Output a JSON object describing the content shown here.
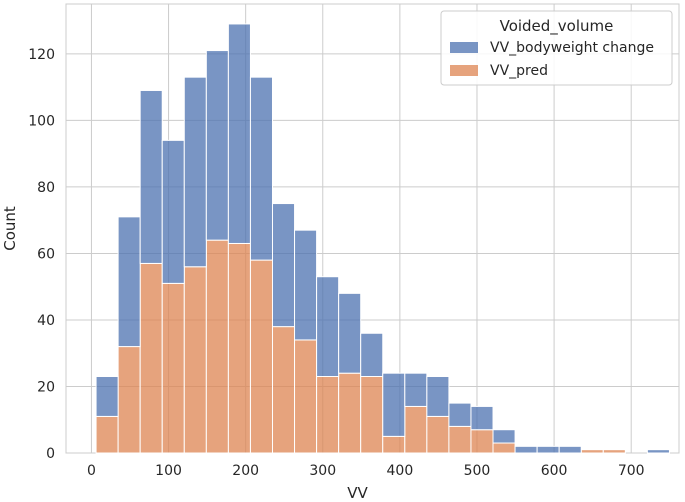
{
  "chart_data": {
    "type": "bar",
    "subtype": "stacked-histogram",
    "xlabel": "VV",
    "ylabel": "Count",
    "xlim": [
      -33,
      762
    ],
    "ylim": [
      0,
      135
    ],
    "xticks": [
      0,
      100,
      200,
      300,
      400,
      500,
      600,
      700
    ],
    "yticks": [
      0,
      20,
      40,
      60,
      80,
      100,
      120
    ],
    "grid": true,
    "legend": {
      "title": "Voided_volume",
      "position": "top-right",
      "entries": [
        {
          "label": "VV_bodyweight change",
          "color": "#4c72b0"
        },
        {
          "label": "VV_pred",
          "color": "#dd8452"
        }
      ]
    },
    "bin_edges": [
      6,
      34.6,
      63.2,
      91.8,
      120.4,
      149,
      177.6,
      206.2,
      234.8,
      263.4,
      292,
      320.6,
      349.2,
      377.8,
      406.4,
      435,
      463.6,
      492.2,
      520.8,
      549.4,
      578,
      606.6,
      635.2,
      663.8,
      692.4,
      721,
      749.6
    ],
    "series": [
      {
        "name": "VV_pred",
        "color": "#dd8452",
        "values": [
          11,
          32,
          57,
          51,
          56,
          64,
          63,
          58,
          38,
          34,
          23,
          24,
          23,
          5,
          14,
          11,
          8,
          7,
          3,
          0,
          0,
          0,
          1,
          1,
          0,
          0
        ]
      },
      {
        "name": "VV_bodyweight change",
        "color": "#4c72b0",
        "values": [
          12,
          39,
          52,
          43,
          57,
          57,
          66,
          55,
          37,
          33,
          30,
          24,
          13,
          19,
          10,
          12,
          7,
          7,
          4,
          2,
          2,
          2,
          0,
          0,
          0,
          1
        ]
      }
    ]
  }
}
